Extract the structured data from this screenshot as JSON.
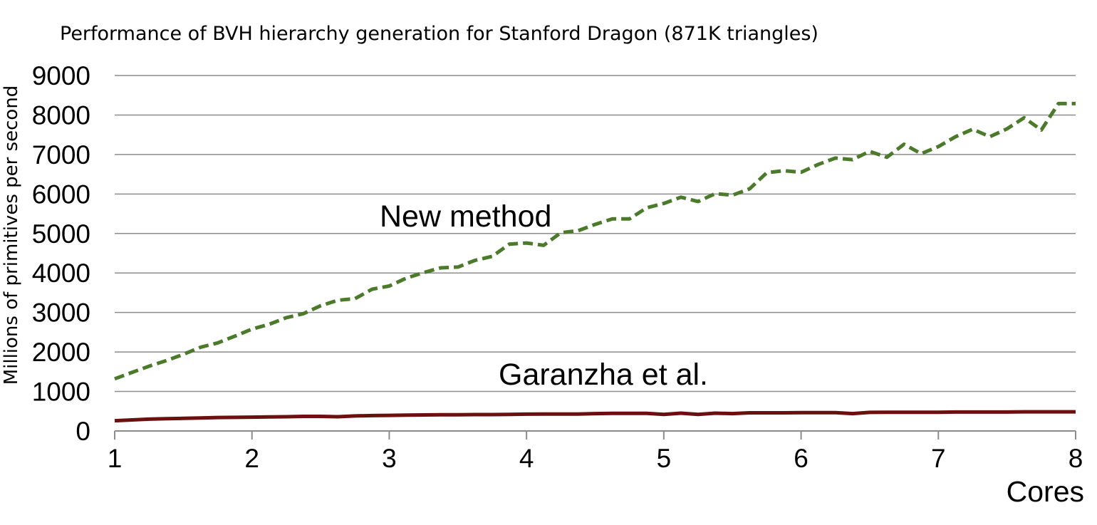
{
  "chart_data": {
    "type": "line",
    "title": "Performance of BVH hierarchy generation for Stanford Dragon (871K triangles)",
    "xlabel": "Cores",
    "ylabel": "Millions of primitives per second",
    "xlim": [
      1,
      8
    ],
    "ylim": [
      0,
      9000
    ],
    "x_ticks": [
      "1",
      "2",
      "3",
      "4",
      "5",
      "6",
      "7",
      "8"
    ],
    "y_ticks": [
      "0",
      "1000",
      "2000",
      "3000",
      "4000",
      "5000",
      "6000",
      "7000",
      "8000",
      "9000"
    ],
    "grid": true,
    "series": [
      {
        "name": "New method",
        "color": "#4a7a2a",
        "line_style": "dashed",
        "x": [
          1.0,
          1.125,
          1.25,
          1.375,
          1.5,
          1.625,
          1.75,
          1.875,
          2.0,
          2.125,
          2.25,
          2.375,
          2.5,
          2.625,
          2.75,
          2.875,
          3.0,
          3.125,
          3.25,
          3.375,
          3.5,
          3.625,
          3.75,
          3.875,
          4.0,
          4.125,
          4.25,
          4.375,
          4.5,
          4.625,
          4.75,
          4.875,
          5.0,
          5.125,
          5.25,
          5.375,
          5.5,
          5.625,
          5.75,
          5.875,
          6.0,
          6.125,
          6.25,
          6.375,
          6.5,
          6.625,
          6.75,
          6.875,
          7.0,
          7.125,
          7.25,
          7.375,
          7.5,
          7.625,
          7.75,
          7.875,
          8.0
        ],
        "y": [
          1320,
          1480,
          1640,
          1780,
          1940,
          2120,
          2230,
          2400,
          2580,
          2700,
          2870,
          2970,
          3170,
          3310,
          3350,
          3590,
          3670,
          3870,
          4010,
          4130,
          4150,
          4320,
          4420,
          4730,
          4760,
          4700,
          5020,
          5070,
          5230,
          5370,
          5370,
          5650,
          5760,
          5920,
          5810,
          6010,
          5970,
          6130,
          6540,
          6590,
          6550,
          6750,
          6910,
          6870,
          7080,
          6930,
          7260,
          7020,
          7200,
          7450,
          7640,
          7450,
          7650,
          7930,
          7620,
          8290,
          8290
        ]
      },
      {
        "name": "Garanzha et al.",
        "color": "#6b0f0f",
        "line_style": "solid",
        "x": [
          1.0,
          1.125,
          1.25,
          1.375,
          1.5,
          1.625,
          1.75,
          1.875,
          2.0,
          2.125,
          2.25,
          2.375,
          2.5,
          2.625,
          2.75,
          2.875,
          3.0,
          3.125,
          3.25,
          3.375,
          3.5,
          3.625,
          3.75,
          3.875,
          4.0,
          4.125,
          4.25,
          4.375,
          4.5,
          4.625,
          4.75,
          4.875,
          5.0,
          5.125,
          5.25,
          5.375,
          5.5,
          5.625,
          5.75,
          5.875,
          6.0,
          6.125,
          6.25,
          6.375,
          6.5,
          6.625,
          6.75,
          6.875,
          7.0,
          7.125,
          7.25,
          7.375,
          7.5,
          7.625,
          7.75,
          7.875,
          8.0
        ],
        "y": [
          260,
          280,
          300,
          310,
          320,
          330,
          340,
          345,
          350,
          355,
          360,
          370,
          370,
          360,
          380,
          390,
          395,
          400,
          405,
          410,
          410,
          415,
          415,
          420,
          425,
          430,
          430,
          430,
          440,
          445,
          445,
          445,
          420,
          450,
          420,
          450,
          440,
          460,
          460,
          460,
          465,
          465,
          465,
          440,
          470,
          475,
          475,
          475,
          475,
          480,
          480,
          480,
          480,
          485,
          485,
          485,
          485
        ]
      }
    ]
  }
}
